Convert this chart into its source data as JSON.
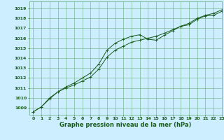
{
  "background_color": "#cceeff",
  "grid_color": "#66aa77",
  "line_color": "#1a5c1a",
  "marker_color": "#1a5c1a",
  "xlim": [
    -0.5,
    23
  ],
  "ylim": [
    1008.3,
    1019.7
  ],
  "yticks": [
    1009,
    1010,
    1011,
    1012,
    1013,
    1014,
    1015,
    1016,
    1017,
    1018,
    1019
  ],
  "xticks": [
    0,
    1,
    2,
    3,
    4,
    5,
    6,
    7,
    8,
    9,
    10,
    11,
    12,
    13,
    14,
    15,
    16,
    17,
    18,
    19,
    20,
    21,
    22,
    23
  ],
  "line1_x": [
    0,
    1,
    2,
    3,
    4,
    5,
    6,
    7,
    8,
    9,
    10,
    11,
    12,
    13,
    14,
    15,
    16,
    17,
    18,
    19,
    20,
    21,
    22,
    23
  ],
  "line1_y": [
    1008.6,
    1009.1,
    1010.0,
    1010.6,
    1011.1,
    1011.5,
    1012.0,
    1012.5,
    1013.4,
    1014.8,
    1015.5,
    1015.9,
    1016.2,
    1016.35,
    1015.9,
    1015.8,
    1016.3,
    1016.75,
    1017.2,
    1017.35,
    1017.9,
    1018.25,
    1018.3,
    1018.7
  ],
  "line2_x": [
    0,
    1,
    2,
    3,
    4,
    5,
    6,
    7,
    8,
    9,
    10,
    11,
    12,
    13,
    14,
    15,
    16,
    17,
    18,
    19,
    20,
    21,
    22,
    23
  ],
  "line2_y": [
    1008.6,
    1009.1,
    1009.9,
    1010.6,
    1011.0,
    1011.3,
    1011.7,
    1012.1,
    1012.9,
    1014.1,
    1014.8,
    1015.2,
    1015.6,
    1015.8,
    1016.0,
    1016.2,
    1016.5,
    1016.85,
    1017.2,
    1017.5,
    1018.0,
    1018.3,
    1018.5,
    1018.85
  ],
  "xlabel": "Graphe pression niveau de la mer (hPa)",
  "tick_fontsize": 4.5,
  "label_fontsize": 6.0
}
